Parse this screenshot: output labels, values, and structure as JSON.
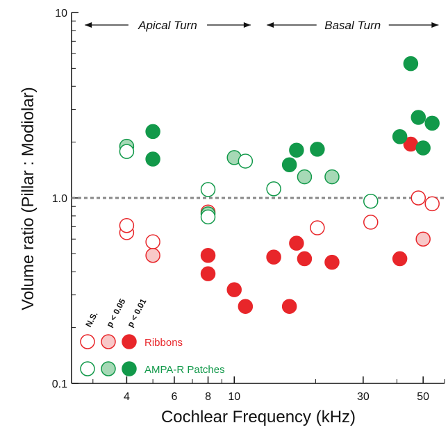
{
  "chart_data": {
    "type": "scatter",
    "xlabel": "Cochlear Frequency (kHz)",
    "ylabel": "Volume ratio (Pillar : Modiolar)",
    "x_scale": "log",
    "y_scale": "log",
    "xlim": [
      2.5,
      60
    ],
    "ylim": [
      0.1,
      10
    ],
    "x_ticks": [
      4,
      6,
      8,
      10,
      30,
      50
    ],
    "y_ticks": [
      0.1,
      1.0,
      10
    ],
    "y_tick_labels": [
      "0.1",
      "1.0",
      "10"
    ],
    "reference_line": 1.0,
    "regions": [
      {
        "label": "Apical Turn",
        "x_from": 2.8,
        "x_to": 11.5
      },
      {
        "label": "Basal Turn",
        "x_from": 13.2,
        "x_to": 57
      }
    ],
    "significance_labels": [
      "N.S.",
      "p < 0.05",
      "p < 0.01"
    ],
    "series": [
      {
        "name": "Ribbons",
        "color": "#e8262a",
        "points": [
          {
            "x": 4,
            "y": 0.65,
            "sig": "ns"
          },
          {
            "x": 4,
            "y": 0.71,
            "sig": "ns"
          },
          {
            "x": 5,
            "y": 0.58,
            "sig": "ns"
          },
          {
            "x": 5,
            "y": 0.49,
            "sig": "p05"
          },
          {
            "x": 8,
            "y": 0.84,
            "sig": "p05"
          },
          {
            "x": 8,
            "y": 0.49,
            "sig": "p01"
          },
          {
            "x": 8,
            "y": 0.39,
            "sig": "p01"
          },
          {
            "x": 10,
            "y": 0.32,
            "sig": "p01"
          },
          {
            "x": 11,
            "y": 0.26,
            "sig": "p01"
          },
          {
            "x": 14,
            "y": 0.48,
            "sig": "p01"
          },
          {
            "x": 16,
            "y": 0.26,
            "sig": "p01"
          },
          {
            "x": 17,
            "y": 0.57,
            "sig": "p01"
          },
          {
            "x": 18.2,
            "y": 0.47,
            "sig": "p01"
          },
          {
            "x": 20.3,
            "y": 0.69,
            "sig": "ns"
          },
          {
            "x": 23,
            "y": 0.45,
            "sig": "p01"
          },
          {
            "x": 32,
            "y": 0.74,
            "sig": "ns"
          },
          {
            "x": 41,
            "y": 0.47,
            "sig": "p01"
          },
          {
            "x": 45,
            "y": 1.95,
            "sig": "p01"
          },
          {
            "x": 48,
            "y": 1.0,
            "sig": "ns"
          },
          {
            "x": 50,
            "y": 0.6,
            "sig": "p05"
          },
          {
            "x": 54,
            "y": 0.93,
            "sig": "ns"
          }
        ]
      },
      {
        "name": "AMPA-R Patches",
        "color": "#12994a",
        "points": [
          {
            "x": 4,
            "y": 1.9,
            "sig": "p05"
          },
          {
            "x": 4,
            "y": 1.78,
            "sig": "ns"
          },
          {
            "x": 5,
            "y": 2.28,
            "sig": "p01"
          },
          {
            "x": 5,
            "y": 1.62,
            "sig": "p01"
          },
          {
            "x": 8,
            "y": 1.11,
            "sig": "ns"
          },
          {
            "x": 8,
            "y": 0.82,
            "sig": "p05"
          },
          {
            "x": 8,
            "y": 0.79,
            "sig": "ns"
          },
          {
            "x": 10,
            "y": 1.65,
            "sig": "p05"
          },
          {
            "x": 11,
            "y": 1.58,
            "sig": "ns"
          },
          {
            "x": 14,
            "y": 1.12,
            "sig": "ns"
          },
          {
            "x": 16,
            "y": 1.51,
            "sig": "p01"
          },
          {
            "x": 17,
            "y": 1.81,
            "sig": "p01"
          },
          {
            "x": 18.2,
            "y": 1.3,
            "sig": "p05"
          },
          {
            "x": 20.3,
            "y": 1.83,
            "sig": "p01"
          },
          {
            "x": 23,
            "y": 1.3,
            "sig": "p05"
          },
          {
            "x": 32,
            "y": 0.96,
            "sig": "ns"
          },
          {
            "x": 41,
            "y": 2.14,
            "sig": "p01"
          },
          {
            "x": 45,
            "y": 5.3,
            "sig": "p01"
          },
          {
            "x": 48,
            "y": 2.72,
            "sig": "p01"
          },
          {
            "x": 50,
            "y": 1.86,
            "sig": "p01"
          },
          {
            "x": 54,
            "y": 2.53,
            "sig": "p01"
          }
        ]
      }
    ],
    "styles": {
      "ns": {
        "fill": "#ffffff"
      },
      "p05": {
        "fill_red": "#f8c8c8",
        "fill_green": "#a6d9b6"
      },
      "p01": {
        "fill": "series"
      }
    }
  }
}
